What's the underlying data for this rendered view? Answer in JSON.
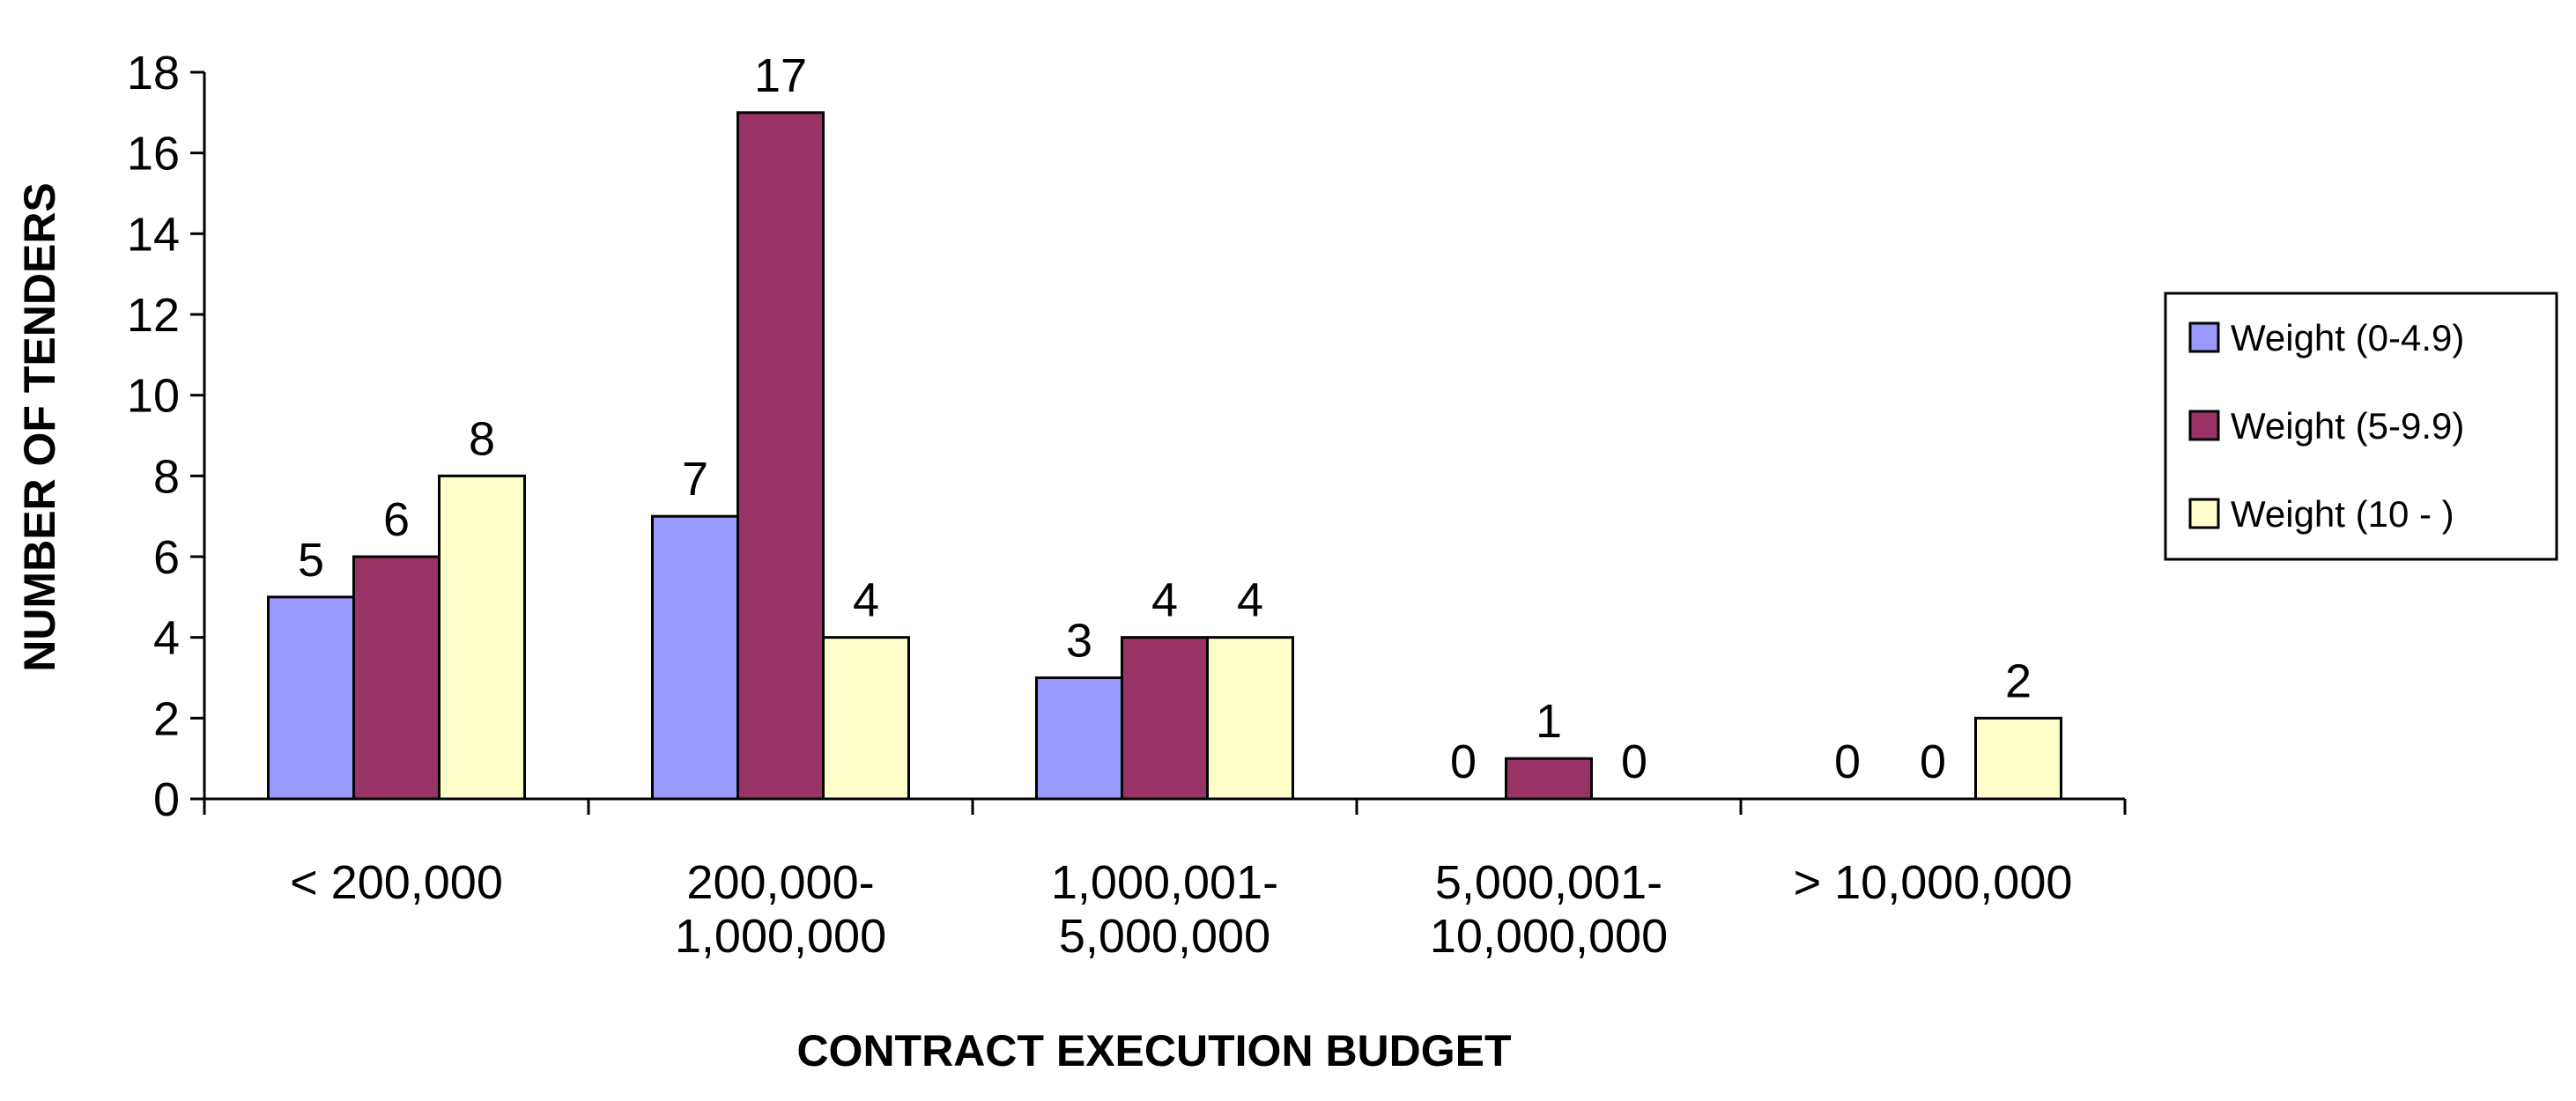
{
  "chart_data": {
    "type": "bar",
    "title": "",
    "xlabel": "CONTRACT EXECUTION BUDGET",
    "ylabel": "NUMBER OF TENDERS",
    "ylim": [
      0,
      18
    ],
    "yticks": [
      0,
      2,
      4,
      6,
      8,
      10,
      12,
      14,
      16,
      18
    ],
    "grid": false,
    "legend_position": "right",
    "categories": [
      [
        "< 200,000"
      ],
      [
        "200,000-",
        "1,000,000"
      ],
      [
        "1,000,001-",
        "5,000,000"
      ],
      [
        "5,000,001-",
        "10,000,000"
      ],
      [
        "> 10,000,000"
      ]
    ],
    "series": [
      {
        "name": "Weight (0-4.9)",
        "color": "#9999ff",
        "values": [
          5,
          7,
          3,
          0,
          0
        ]
      },
      {
        "name": "Weight (5-9.9)",
        "color": "#993366",
        "values": [
          6,
          17,
          4,
          1,
          0
        ]
      },
      {
        "name": "Weight (10 - )",
        "color": "#ffffcc",
        "values": [
          8,
          4,
          4,
          0,
          2
        ]
      }
    ]
  }
}
